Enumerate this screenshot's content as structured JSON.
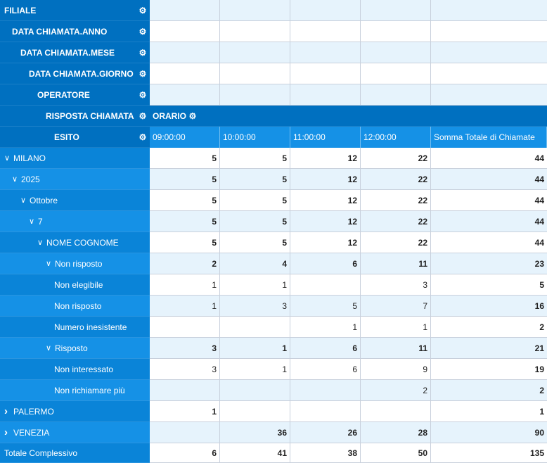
{
  "header": {
    "levels": [
      {
        "label": "FILIALE",
        "icon": "gear-icon"
      },
      {
        "label": "DATA CHIAMATA.ANNO",
        "icon": "gear-icon"
      },
      {
        "label": "DATA CHIAMATA.MESE",
        "icon": "gear-icon"
      },
      {
        "label": "DATA CHIAMATA.GIORNO",
        "icon": "gear-icon"
      },
      {
        "label": "OPERATORE",
        "icon": "gear-icon"
      },
      {
        "label": "RISPOSTA CHIAMATA",
        "icon": "gear-icon"
      },
      {
        "label": "ESITO",
        "icon": "gear-icon"
      }
    ],
    "column_field": "ORARIO",
    "columns": [
      "09:00:00",
      "10:00:00",
      "11:00:00",
      "12:00:00",
      "Somma Totale di Chiamate"
    ]
  },
  "rows": [
    {
      "label": "MILANO",
      "chevron": "down",
      "values": [
        "5",
        "5",
        "12",
        "22",
        "44"
      ]
    },
    {
      "label": "2025",
      "chevron": "down",
      "values": [
        "5",
        "5",
        "12",
        "22",
        "44"
      ]
    },
    {
      "label": "Ottobre",
      "chevron": "down",
      "values": [
        "5",
        "5",
        "12",
        "22",
        "44"
      ]
    },
    {
      "label": "7",
      "chevron": "down",
      "values": [
        "5",
        "5",
        "12",
        "22",
        "44"
      ]
    },
    {
      "label": "NOME COGNOME",
      "chevron": "down",
      "values": [
        "5",
        "5",
        "12",
        "22",
        "44"
      ]
    },
    {
      "label": "Non risposto",
      "chevron": "down",
      "values": [
        "2",
        "4",
        "6",
        "11",
        "23"
      ]
    },
    {
      "label": "Non elegibile",
      "chevron": "",
      "values": [
        "1",
        "1",
        "",
        "3",
        "5"
      ]
    },
    {
      "label": "Non risposto",
      "chevron": "",
      "values": [
        "1",
        "3",
        "5",
        "7",
        "16"
      ]
    },
    {
      "label": "Numero inesistente",
      "chevron": "",
      "values": [
        "",
        "",
        "1",
        "1",
        "2"
      ]
    },
    {
      "label": "Risposto",
      "chevron": "down",
      "values": [
        "3",
        "1",
        "6",
        "11",
        "21"
      ]
    },
    {
      "label": "Non interessato",
      "chevron": "",
      "values": [
        "3",
        "1",
        "6",
        "9",
        "19"
      ]
    },
    {
      "label": "Non richiamare più",
      "chevron": "",
      "values": [
        "",
        "",
        "",
        "2",
        "2"
      ]
    },
    {
      "label": "PALERMO",
      "chevron": "right",
      "values": [
        "1",
        "",
        "",
        "",
        "1"
      ]
    },
    {
      "label": "VENEZIA",
      "chevron": "right",
      "values": [
        "",
        "36",
        "26",
        "28",
        "90"
      ]
    },
    {
      "label": "Totale Complessivo",
      "chevron": "",
      "values": [
        "6",
        "41",
        "38",
        "50",
        "135"
      ]
    }
  ],
  "icons": {
    "gear": "gear-icon",
    "expanded": "chevron-down-icon",
    "collapsed": "chevron-right-icon"
  },
  "colors": {
    "header": "#0070c0",
    "row_header": "#0a84d8",
    "column_header": "#1591e6",
    "light_row": "#e6f3fc"
  }
}
